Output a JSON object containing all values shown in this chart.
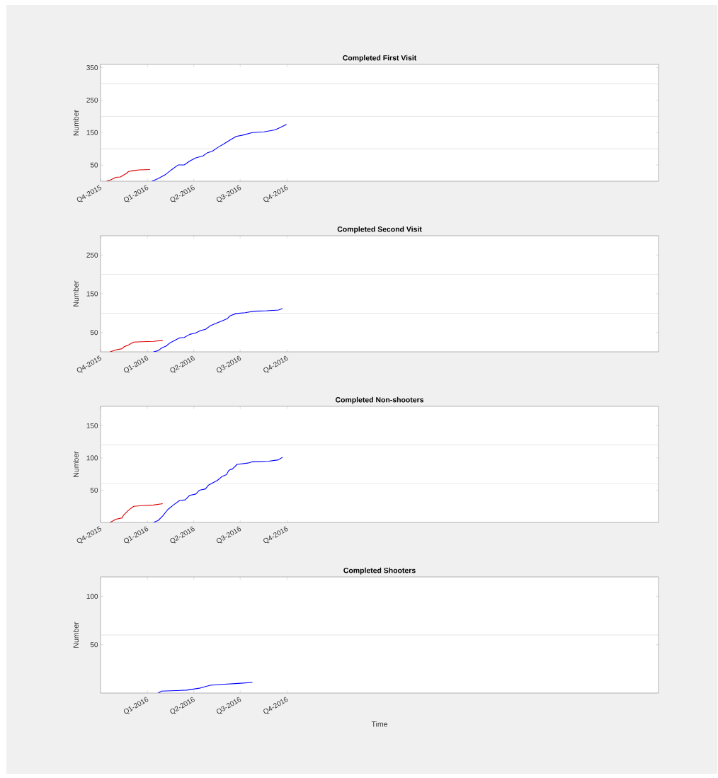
{
  "chart_data": [
    {
      "type": "line",
      "title": "Completed First Visit",
      "ylabel": "Number",
      "xlim": [
        "2015-10-01",
        "2018-09-30"
      ],
      "ylim": [
        0,
        360
      ],
      "xticks": [
        {
          "value": "2015-10-01",
          "label": "Q4-2015"
        },
        {
          "value": "2016-01-01",
          "label": "Q1-2016"
        },
        {
          "value": "2016-04-01",
          "label": "Q2-2016"
        },
        {
          "value": "2016-07-01",
          "label": "Q3-2016"
        },
        {
          "value": "2016-10-01",
          "label": "Q4-2016"
        }
      ],
      "yticks": [
        50,
        150,
        250,
        350
      ],
      "ref_lines": [
        {
          "axis": "y",
          "value": 100,
          "color": "#d0d0d0"
        },
        {
          "axis": "y",
          "value": 200,
          "color": "#d0d0d0"
        },
        {
          "axis": "y",
          "value": 300,
          "color": "#d0d0d0"
        }
      ],
      "series": [
        {
          "color": "#dd0000",
          "x": [
            "2015-10-13",
            "2015-10-22",
            "2015-10-26",
            "2015-10-31",
            "2015-11-09",
            "2015-11-14",
            "2015-11-21",
            "2015-11-25",
            "2015-12-05",
            "2015-12-16",
            "2016-01-06"
          ],
          "values": [
            0,
            5,
            8,
            12,
            13,
            18,
            24,
            30,
            33,
            35,
            36
          ]
        },
        {
          "color": "#0000ff",
          "x": [
            "2016-01-10",
            "2016-01-22",
            "2016-02-05",
            "2016-02-17",
            "2016-03-01",
            "2016-03-13",
            "2016-03-24",
            "2016-04-05",
            "2016-04-19",
            "2016-04-28",
            "2016-05-07",
            "2016-05-19",
            "2016-05-30",
            "2016-06-09",
            "2016-06-23",
            "2016-07-06",
            "2016-07-25",
            "2016-08-17",
            "2016-09-07",
            "2016-09-18",
            "2016-09-30"
          ],
          "values": [
            0,
            8,
            20,
            35,
            50,
            50,
            62,
            72,
            78,
            88,
            92,
            105,
            115,
            125,
            138,
            142,
            150,
            152,
            158,
            166,
            175
          ]
        }
      ]
    },
    {
      "type": "line",
      "title": "Completed Second Visit",
      "ylabel": "Number",
      "xlim": [
        "2015-10-01",
        "2018-09-30"
      ],
      "ylim": [
        0,
        300
      ],
      "xticks": [
        {
          "value": "2015-10-01",
          "label": "Q4-2015"
        },
        {
          "value": "2016-01-01",
          "label": "Q1-2016"
        },
        {
          "value": "2016-04-01",
          "label": "Q2-2016"
        },
        {
          "value": "2016-07-01",
          "label": "Q3-2016"
        },
        {
          "value": "2016-10-01",
          "label": "Q4-2016"
        }
      ],
      "yticks": [
        50,
        150,
        250
      ],
      "ref_lines": [
        {
          "axis": "y",
          "value": 100,
          "color": "#d0d0d0"
        },
        {
          "axis": "y",
          "value": 200,
          "color": "#d0d0d0"
        }
      ],
      "series": [
        {
          "color": "#dd0000",
          "x": [
            "2015-10-20",
            "2015-10-31",
            "2015-11-12",
            "2015-11-16",
            "2015-11-25",
            "2015-12-05",
            "2015-12-21",
            "2016-01-13",
            "2016-01-31"
          ],
          "values": [
            0,
            5,
            8,
            13,
            18,
            25,
            26,
            27,
            30
          ]
        },
        {
          "color": "#0000ff",
          "x": [
            "2016-01-13",
            "2016-01-22",
            "2016-01-29",
            "2016-02-07",
            "2016-02-14",
            "2016-03-04",
            "2016-03-13",
            "2016-03-24",
            "2016-04-05",
            "2016-04-14",
            "2016-04-24",
            "2016-05-03",
            "2016-05-17",
            "2016-05-30",
            "2016-06-06",
            "2016-06-11",
            "2016-06-23",
            "2016-07-11",
            "2016-07-27",
            "2016-08-22",
            "2016-09-14",
            "2016-09-22"
          ],
          "values": [
            0,
            3,
            10,
            15,
            23,
            36,
            37,
            45,
            49,
            55,
            58,
            67,
            75,
            82,
            86,
            93,
            99,
            101,
            105,
            106,
            108,
            112
          ]
        }
      ]
    },
    {
      "type": "line",
      "title": "Completed Non-shooters",
      "ylabel": "Number",
      "xlim": [
        "2015-10-01",
        "2018-09-30"
      ],
      "ylim": [
        0,
        180
      ],
      "xticks": [
        {
          "value": "2015-10-01",
          "label": "Q4-2015"
        },
        {
          "value": "2016-01-01",
          "label": "Q1-2016"
        },
        {
          "value": "2016-04-01",
          "label": "Q2-2016"
        },
        {
          "value": "2016-07-01",
          "label": "Q3-2016"
        },
        {
          "value": "2016-10-01",
          "label": "Q4-2016"
        }
      ],
      "yticks": [
        50,
        100,
        150
      ],
      "ref_lines": [
        {
          "axis": "y",
          "value": 60,
          "color": "#d0d0d0"
        },
        {
          "axis": "y",
          "value": 120,
          "color": "#d0d0d0"
        }
      ],
      "series": [
        {
          "color": "#dd0000",
          "x": [
            "2015-10-20",
            "2015-10-31",
            "2015-11-12",
            "2015-11-16",
            "2015-11-25",
            "2015-12-05",
            "2015-12-21",
            "2016-01-13",
            "2016-01-31"
          ],
          "values": [
            0,
            5,
            7,
            12,
            19,
            25,
            26,
            27,
            29
          ]
        },
        {
          "color": "#0000ff",
          "x": [
            "2016-01-13",
            "2016-01-22",
            "2016-01-31",
            "2016-02-10",
            "2016-02-21",
            "2016-03-04",
            "2016-03-15",
            "2016-03-24",
            "2016-04-05",
            "2016-04-12",
            "2016-04-24",
            "2016-04-30",
            "2016-05-17",
            "2016-05-26",
            "2016-06-04",
            "2016-06-09",
            "2016-06-16",
            "2016-06-25",
            "2016-07-16",
            "2016-07-25",
            "2016-08-26",
            "2016-09-14",
            "2016-09-22"
          ],
          "values": [
            0,
            3,
            10,
            20,
            27,
            34,
            35,
            42,
            44,
            50,
            52,
            58,
            65,
            71,
            74,
            81,
            83,
            90,
            92,
            94,
            95,
            97,
            101
          ]
        }
      ]
    },
    {
      "type": "line",
      "title": "Completed Shooters",
      "xlabel": "Time",
      "ylabel": "Number",
      "xlim": [
        "2015-10-01",
        "2018-09-30"
      ],
      "ylim": [
        0,
        120
      ],
      "xticks": [
        {
          "value": "2016-01-01",
          "label": "Q1-2016"
        },
        {
          "value": "2016-04-01",
          "label": "Q2-2016"
        },
        {
          "value": "2016-07-01",
          "label": "Q3-2016"
        },
        {
          "value": "2016-10-01",
          "label": "Q4-2016"
        }
      ],
      "yticks": [
        50,
        100
      ],
      "ref_lines": [
        {
          "axis": "y",
          "value": 60,
          "color": "#d0d0d0"
        }
      ],
      "series": [
        {
          "color": "#0000ff",
          "x": [
            "2016-01-22",
            "2016-01-29",
            "2016-03-18",
            "2016-04-12",
            "2016-05-03",
            "2016-05-26",
            "2016-06-27",
            "2016-07-25"
          ],
          "values": [
            0,
            2,
            3,
            5,
            8,
            9,
            10,
            11
          ]
        }
      ]
    }
  ]
}
